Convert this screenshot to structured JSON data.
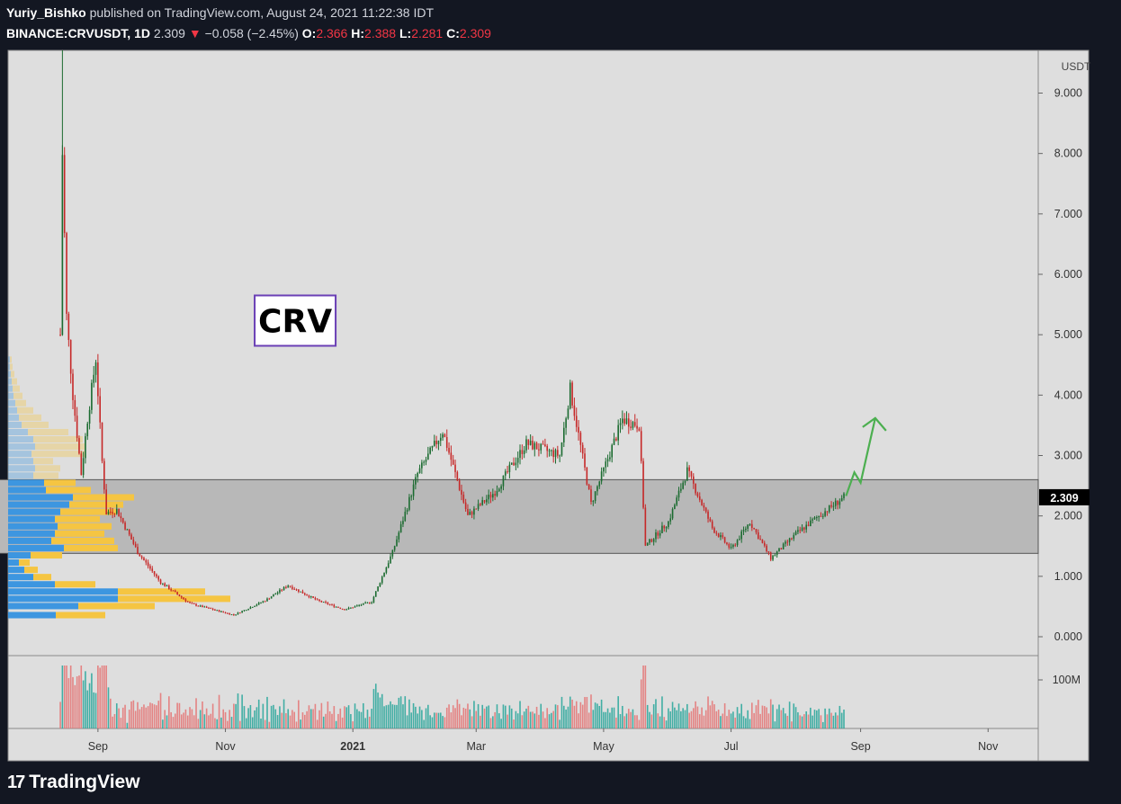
{
  "header": {
    "author": "Yuriy_Bishko",
    "published": "published on TradingView.com, August 24, 2021 11:22:38 IDT",
    "symbol": "BINANCE:CRVUSDT, 1D",
    "last": "2.309",
    "change_arrow": "▼",
    "change": "−0.058 (−2.45%)",
    "o_label": "O:",
    "o": "2.366",
    "h_label": "H:",
    "h": "2.388",
    "l_label": "L:",
    "l": "2.281",
    "c_label": "C:",
    "c": "2.309"
  },
  "brand": {
    "logo": "17",
    "name": "TradingView"
  },
  "colors": {
    "background": "#131722",
    "pane": "#dedede",
    "up": "#26a69a",
    "up_candle": "#1b6b30",
    "down": "#c62828",
    "zone": "#b8b8b8",
    "profile_blue": "#3d96e0",
    "profile_yellow": "#f5c542",
    "arrow": "#4caf50",
    "label_border": "#6a3fb5"
  },
  "chart_data": {
    "type": "candlestick",
    "title": "CRV",
    "unit_label": "USDT",
    "price_ticks": [
      "0.000",
      "1.000",
      "2.000",
      "3.000",
      "4.000",
      "5.000",
      "6.000",
      "7.000",
      "8.000",
      "9.000"
    ],
    "ylim": [
      0,
      9.6
    ],
    "last_price_label": "2.309",
    "volume_tick": "100M",
    "x_ticks": [
      "Sep",
      "Nov",
      "2021",
      "Mar",
      "May",
      "Jul",
      "Sep",
      "Nov"
    ],
    "x_tick_dates": [
      "2020-09-01",
      "2020-11-01",
      "2021-01-01",
      "2021-03-01",
      "2021-05-01",
      "2021-07-01",
      "2021-09-01",
      "2021-11-01"
    ],
    "x_range": [
      "2020-07-20",
      "2021-11-25"
    ],
    "data_range": [
      "2020-08-14",
      "2021-08-24"
    ],
    "support_zone": [
      1.38,
      2.6
    ],
    "price_path": [
      {
        "date": "2020-08-14",
        "price": 5.0
      },
      {
        "date": "2020-08-15",
        "price": 8.0
      },
      {
        "date": "2020-08-17",
        "price": 5.3
      },
      {
        "date": "2020-08-20",
        "price": 4.0
      },
      {
        "date": "2020-08-24",
        "price": 2.7
      },
      {
        "date": "2020-08-27",
        "price": 3.6
      },
      {
        "date": "2020-08-31",
        "price": 4.6
      },
      {
        "date": "2020-09-03",
        "price": 2.9
      },
      {
        "date": "2020-09-05",
        "price": 2.05
      },
      {
        "date": "2020-09-10",
        "price": 2.1
      },
      {
        "date": "2020-09-20",
        "price": 1.4
      },
      {
        "date": "2020-10-01",
        "price": 0.9
      },
      {
        "date": "2020-10-15",
        "price": 0.55
      },
      {
        "date": "2020-11-05",
        "price": 0.36
      },
      {
        "date": "2020-11-20",
        "price": 0.6
      },
      {
        "date": "2020-12-01",
        "price": 0.85
      },
      {
        "date": "2020-12-15",
        "price": 0.6
      },
      {
        "date": "2020-12-28",
        "price": 0.45
      },
      {
        "date": "2021-01-10",
        "price": 0.58
      },
      {
        "date": "2021-01-20",
        "price": 1.4
      },
      {
        "date": "2021-02-01",
        "price": 2.7
      },
      {
        "date": "2021-02-13",
        "price": 3.4
      },
      {
        "date": "2021-02-25",
        "price": 2.0
      },
      {
        "date": "2021-03-10",
        "price": 2.4
      },
      {
        "date": "2021-03-25",
        "price": 3.2
      },
      {
        "date": "2021-04-10",
        "price": 3.0
      },
      {
        "date": "2021-04-15",
        "price": 4.1
      },
      {
        "date": "2021-04-25",
        "price": 2.2
      },
      {
        "date": "2021-05-10",
        "price": 3.6
      },
      {
        "date": "2021-05-18",
        "price": 3.5
      },
      {
        "date": "2021-05-21",
        "price": 1.5
      },
      {
        "date": "2021-06-01",
        "price": 1.9
      },
      {
        "date": "2021-06-10",
        "price": 2.75
      },
      {
        "date": "2021-06-22",
        "price": 1.8
      },
      {
        "date": "2021-07-01",
        "price": 1.45
      },
      {
        "date": "2021-07-10",
        "price": 1.9
      },
      {
        "date": "2021-07-20",
        "price": 1.3
      },
      {
        "date": "2021-08-01",
        "price": 1.7
      },
      {
        "date": "2021-08-12",
        "price": 2.0
      },
      {
        "date": "2021-08-24",
        "price": 2.31
      }
    ],
    "projection": [
      {
        "date": "2021-08-25",
        "price": 2.33
      },
      {
        "date": "2021-08-29",
        "price": 2.72
      },
      {
        "date": "2021-09-01",
        "price": 2.55
      },
      {
        "date": "2021-09-08",
        "price": 3.62
      }
    ],
    "volume_profile": [
      {
        "price": 0.35,
        "buy": 53,
        "sell": 55
      },
      {
        "price": 0.5,
        "buy": 78,
        "sell": 85
      },
      {
        "price": 0.62,
        "buy": 122,
        "sell": 125
      },
      {
        "price": 0.74,
        "buy": 122,
        "sell": 97
      },
      {
        "price": 0.86,
        "buy": 52,
        "sell": 45
      },
      {
        "price": 0.98,
        "buy": 28,
        "sell": 20
      },
      {
        "price": 1.1,
        "buy": 18,
        "sell": 15
      },
      {
        "price": 1.22,
        "buy": 12,
        "sell": 12
      },
      {
        "price": 1.34,
        "buy": 25,
        "sell": 35
      },
      {
        "price": 1.46,
        "buy": 62,
        "sell": 60
      },
      {
        "price": 1.58,
        "buy": 48,
        "sell": 70
      },
      {
        "price": 1.7,
        "buy": 52,
        "sell": 55
      },
      {
        "price": 1.82,
        "buy": 55,
        "sell": 60
      },
      {
        "price": 1.94,
        "buy": 52,
        "sell": 50
      },
      {
        "price": 2.06,
        "buy": 58,
        "sell": 62
      },
      {
        "price": 2.18,
        "buy": 68,
        "sell": 60
      },
      {
        "price": 2.3,
        "buy": 72,
        "sell": 68
      },
      {
        "price": 2.42,
        "buy": 42,
        "sell": 50
      },
      {
        "price": 2.54,
        "buy": 40,
        "sell": 35
      },
      {
        "price": 2.66,
        "buy": 28,
        "sell": 28
      },
      {
        "price": 2.78,
        "buy": 30,
        "sell": 28
      },
      {
        "price": 2.9,
        "buy": 28,
        "sell": 22
      },
      {
        "price": 3.02,
        "buy": 26,
        "sell": 60
      },
      {
        "price": 3.14,
        "buy": 30,
        "sell": 55
      },
      {
        "price": 3.26,
        "buy": 28,
        "sell": 55
      },
      {
        "price": 3.38,
        "buy": 22,
        "sell": 45
      },
      {
        "price": 3.5,
        "buy": 15,
        "sell": 30
      },
      {
        "price": 3.62,
        "buy": 12,
        "sell": 25
      },
      {
        "price": 3.74,
        "buy": 10,
        "sell": 18
      },
      {
        "price": 3.86,
        "buy": 8,
        "sell": 12
      },
      {
        "price": 3.98,
        "buy": 6,
        "sell": 10
      },
      {
        "price": 4.1,
        "buy": 5,
        "sell": 8
      },
      {
        "price": 4.22,
        "buy": 4,
        "sell": 6
      },
      {
        "price": 4.34,
        "buy": 3,
        "sell": 4
      },
      {
        "price": 4.46,
        "buy": 2,
        "sell": 3
      },
      {
        "price": 4.58,
        "buy": 2,
        "sell": 2
      }
    ]
  }
}
